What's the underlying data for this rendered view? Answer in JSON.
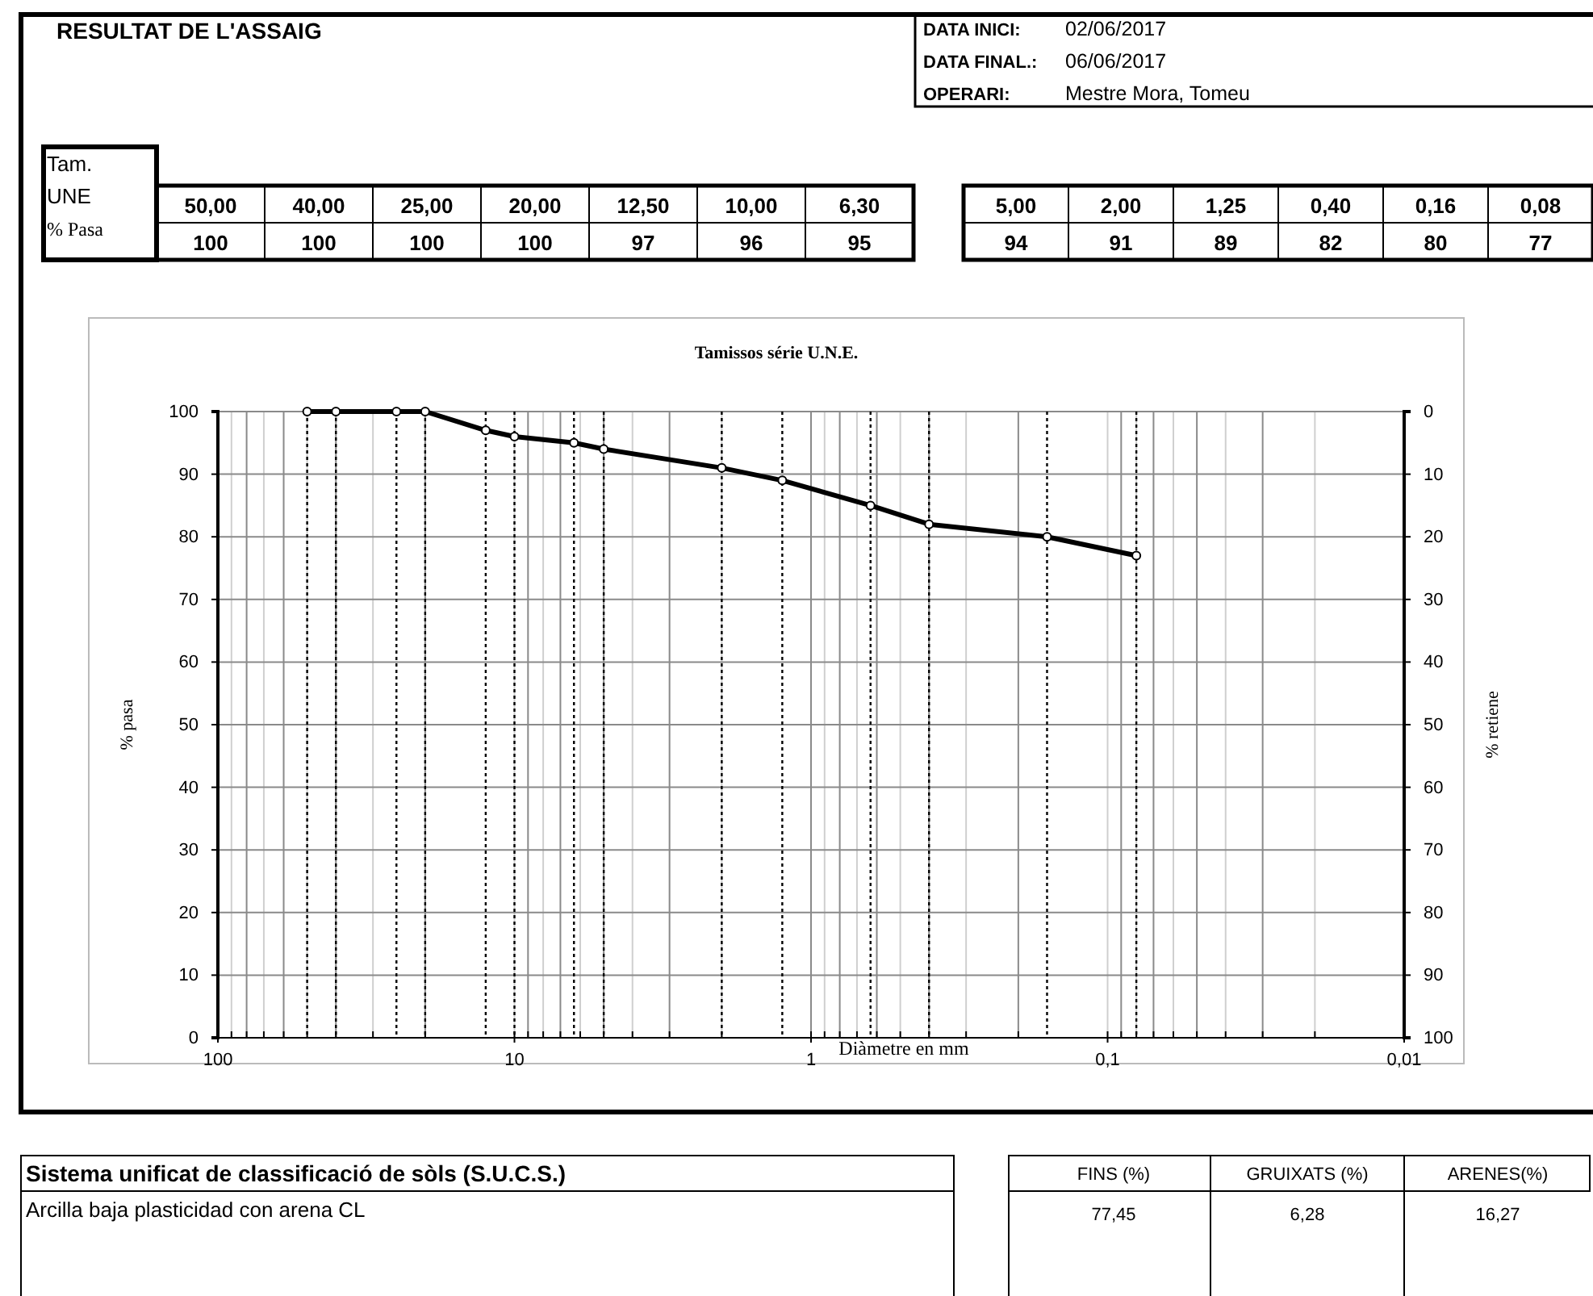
{
  "chart_data": {
    "type": "line",
    "title": "Tamissos série U.N.E.",
    "xlabel": "Diàmetre en mm",
    "ylabel": "% pasa",
    "y2label": "% retiene",
    "log": "x",
    "grid": true,
    "marker": "circle",
    "line_style": "solid",
    "xlim": [
      100,
      0.01
    ],
    "xticks": [
      {
        "value": 100,
        "label": "100"
      },
      {
        "value": 10,
        "label": "10"
      },
      {
        "value": 1,
        "label": "1"
      },
      {
        "value": 0.1,
        "label": "0,1"
      },
      {
        "value": 0.01,
        "label": "0,01"
      }
    ],
    "ylim": [
      0,
      100
    ],
    "yticks": [
      0,
      10,
      20,
      30,
      40,
      50,
      60,
      70,
      80,
      90,
      100
    ],
    "y2lim": [
      100,
      0
    ],
    "y2ticks": [
      100,
      90,
      80,
      70,
      60,
      50,
      40,
      30,
      20,
      10,
      0
    ],
    "series": [
      {
        "color": "#000000",
        "x": [
          50,
          40,
          25,
          20,
          12.5,
          10,
          6.3,
          5,
          2,
          1.25,
          0.63,
          0.4,
          0.16,
          0.08
        ],
        "values": [
          100,
          100,
          100,
          100,
          97,
          96,
          95,
          94,
          91,
          89,
          85,
          82,
          80,
          77
        ]
      }
    ],
    "ref_lines": [
      {
        "axis": "x",
        "value": 50,
        "line_style": "dotted",
        "color": "#000000"
      },
      {
        "axis": "x",
        "value": 40,
        "line_style": "dotted",
        "color": "#000000"
      },
      {
        "axis": "x",
        "value": 25,
        "line_style": "dotted",
        "color": "#000000"
      },
      {
        "axis": "x",
        "value": 20,
        "line_style": "dotted",
        "color": "#000000"
      },
      {
        "axis": "x",
        "value": 12.5,
        "line_style": "dotted",
        "color": "#000000"
      },
      {
        "axis": "x",
        "value": 10,
        "line_style": "dotted",
        "color": "#000000"
      },
      {
        "axis": "x",
        "value": 6.3,
        "line_style": "dotted",
        "color": "#000000"
      },
      {
        "axis": "x",
        "value": 5,
        "line_style": "dotted",
        "color": "#000000"
      },
      {
        "axis": "x",
        "value": 2,
        "line_style": "dotted",
        "color": "#000000"
      },
      {
        "axis": "x",
        "value": 1.25,
        "line_style": "dotted",
        "color": "#000000"
      },
      {
        "axis": "x",
        "value": 0.63,
        "line_style": "dotted",
        "color": "#000000"
      },
      {
        "axis": "x",
        "value": 0.4,
        "line_style": "dotted",
        "color": "#000000"
      },
      {
        "axis": "x",
        "value": 0.16,
        "line_style": "dotted",
        "color": "#000000"
      },
      {
        "axis": "x",
        "value": 0.08,
        "line_style": "dotted",
        "color": "#000000"
      }
    ],
    "annotations": [
      "RESULTAT DE L'ASSAIG",
      "DATA INICI:",
      "02/06/2017",
      "DATA FINAL.:",
      "06/06/2017",
      "OPERARI:",
      "Mestre Mora, Tomeu",
      "Tam.",
      "UNE",
      "% Pasa",
      "Sistema unificat de classificació de sòls (S.U.C.S.)",
      "Arcilla baja plasticidad con arena CL",
      "FINS (%)",
      "GRUIXATS (%)",
      "ARENES(%)",
      "77,45",
      "6,28",
      "16,27",
      "50,00",
      "40,00",
      "25,00",
      "20,00",
      "12,50",
      "10,00",
      "6,30",
      "5,00",
      "2,00",
      "1,25",
      "0,40",
      "0,16",
      "0,08",
      "100",
      "100",
      "100",
      "100",
      "97",
      "96",
      "95",
      "94",
      "91",
      "89",
      "82",
      "80",
      "77"
    ]
  }
}
